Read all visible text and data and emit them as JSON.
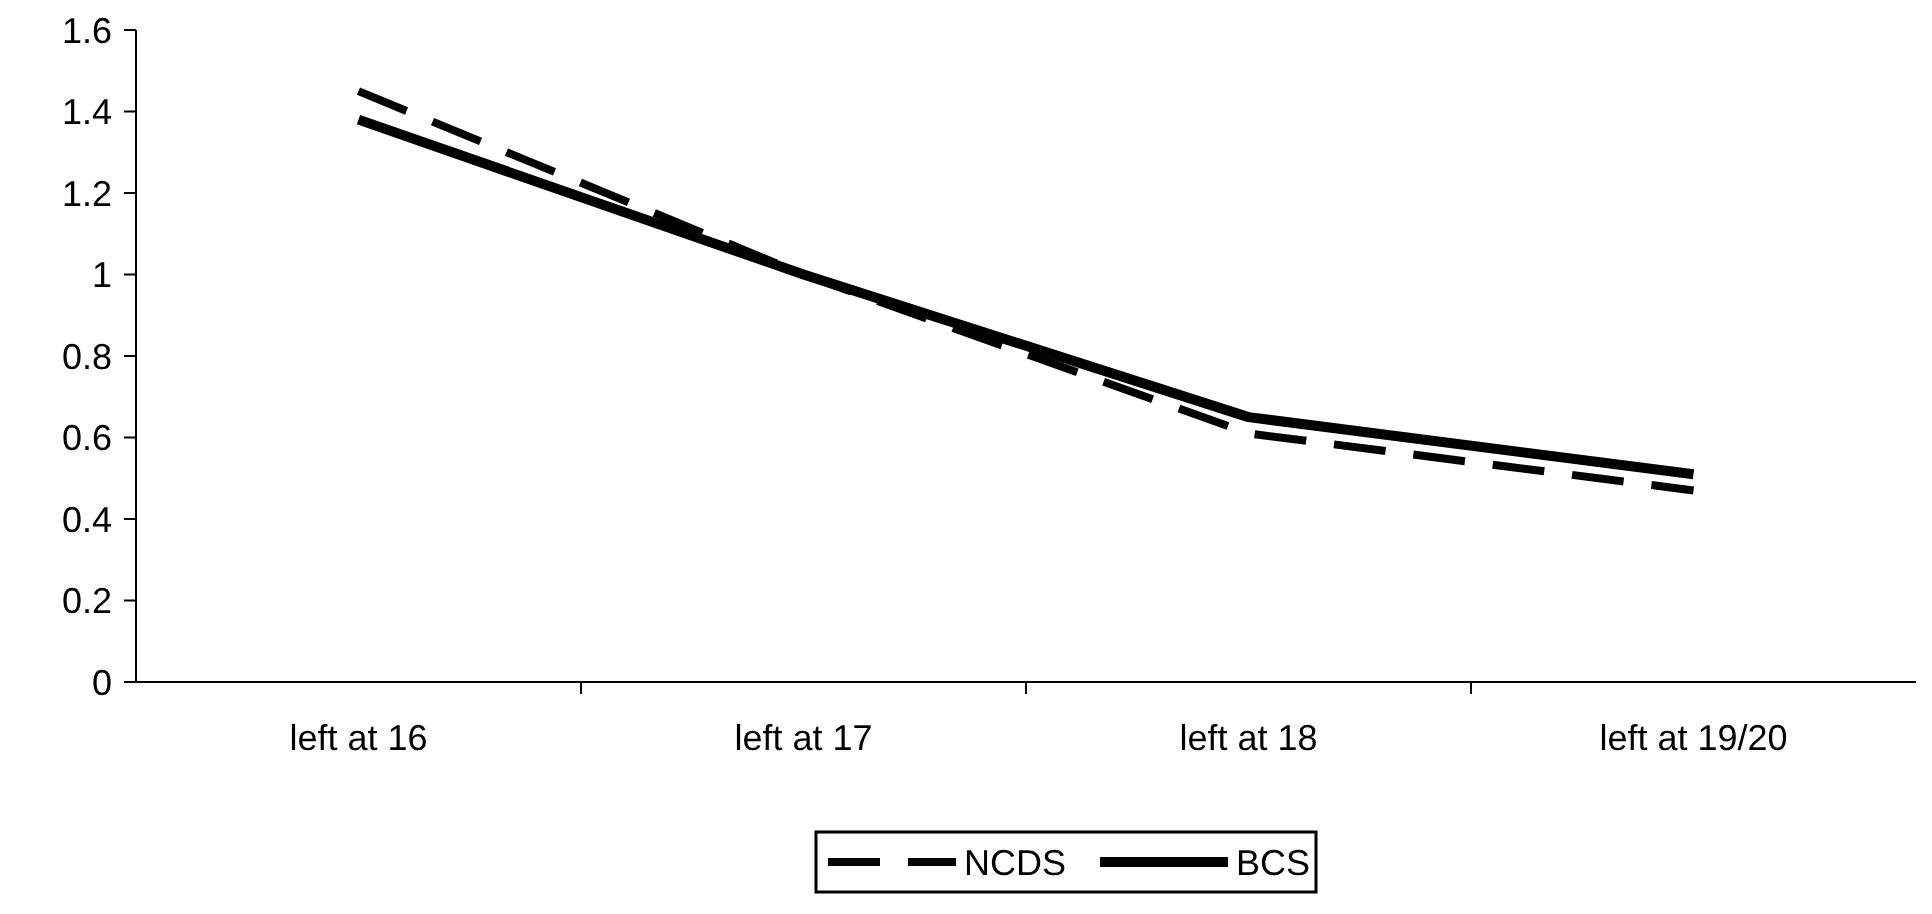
{
  "chart_data": {
    "type": "line",
    "categories": [
      "left at 16",
      "left at 17",
      "left at 18",
      "left at 19/20"
    ],
    "series": [
      {
        "name": "NCDS",
        "color": "#000000",
        "values": [
          1.45,
          1.0,
          0.61,
          0.47
        ],
        "line_style": "dashed"
      },
      {
        "name": "BCS",
        "color": "#000000",
        "values": [
          1.38,
          1.0,
          0.65,
          0.51
        ],
        "line_style": "solid"
      }
    ],
    "ylim": [
      0,
      1.6
    ],
    "yticks": [
      0,
      0.2,
      0.4,
      0.6,
      0.8,
      1,
      1.2,
      1.4,
      1.6
    ],
    "grid": false,
    "legend": "bottom",
    "marker": "none"
  }
}
